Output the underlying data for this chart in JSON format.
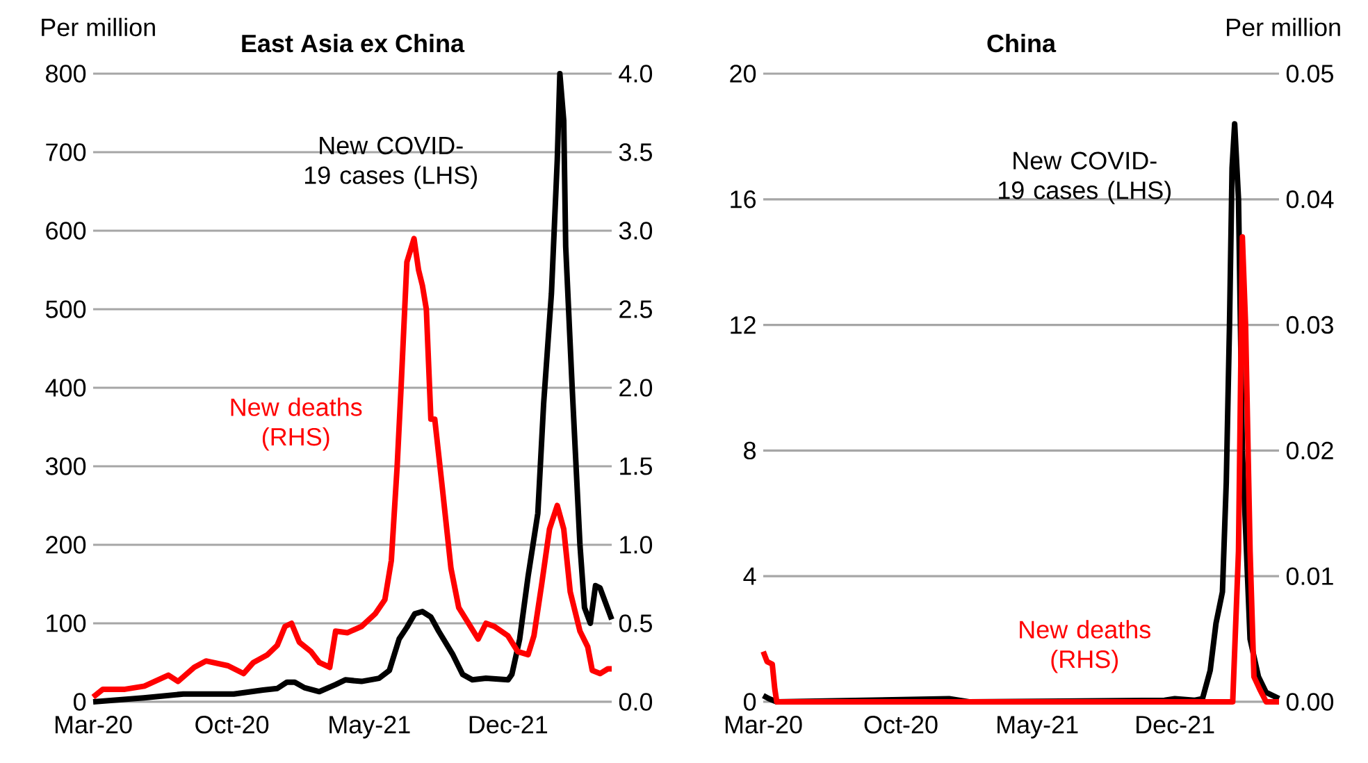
{
  "chart_data": [
    {
      "type": "line",
      "title": "East Asia ex China",
      "ylabel": "Per million",
      "annotations": [
        "New COVID-19 cases (LHS)",
        "New deaths (RHS)"
      ],
      "grid": "y",
      "line_style": "solid",
      "xlim": [
        "2020-03-01",
        "2022-05-10"
      ],
      "xticks": [
        {
          "value": "2020-03-01",
          "label": "Mar-20"
        },
        {
          "value": "2020-10-01",
          "label": "Oct-20"
        },
        {
          "value": "2021-05-01",
          "label": "May-21"
        },
        {
          "value": "2021-12-01",
          "label": "Dec-21"
        }
      ],
      "ylim": [
        0,
        800
      ],
      "yticks": [
        0,
        100,
        200,
        300,
        400,
        500,
        600,
        700,
        800
      ],
      "y2lim": [
        0,
        4
      ],
      "y2ticks": [
        {
          "value": 0,
          "label": "0.0"
        },
        {
          "value": 0.5,
          "label": "0.5"
        },
        {
          "value": 1,
          "label": "1.0"
        },
        {
          "value": 1.5,
          "label": "1.5"
        },
        {
          "value": 2,
          "label": "2.0"
        },
        {
          "value": 2.5,
          "label": "2.5"
        },
        {
          "value": 3,
          "label": "3.0"
        },
        {
          "value": 3.5,
          "label": "3.5"
        },
        {
          "value": 4,
          "label": "4.0"
        }
      ],
      "series": [
        {
          "color": "#000000",
          "x": [
            "2020-03-01",
            "2020-05-18",
            "2020-07-18",
            "2020-10-04",
            "2020-11-18",
            "2020-12-10",
            "2020-12-25",
            "2021-01-06",
            "2021-01-21",
            "2021-02-13",
            "2021-03-10",
            "2021-03-25",
            "2021-04-19",
            "2021-05-16",
            "2021-06-01",
            "2021-06-16",
            "2021-06-28",
            "2021-07-10",
            "2021-07-22",
            "2021-08-04",
            "2021-08-16",
            "2021-09-07",
            "2021-09-22",
            "2021-10-07",
            "2021-10-28",
            "2021-12-01",
            "2021-12-07",
            "2021-12-19",
            "2022-01-01",
            "2022-01-16",
            "2022-01-25",
            "2022-02-06",
            "2022-02-15",
            "2022-02-19",
            "2022-02-25",
            "2022-02-28",
            "2022-03-10",
            "2022-03-22",
            "2022-03-29",
            "2022-04-07",
            "2022-04-15",
            "2022-04-22",
            "2022-05-10"
          ],
          "values": [
            0,
            5,
            10,
            10,
            15,
            17,
            25,
            25,
            18,
            13,
            22,
            28,
            26,
            30,
            40,
            80,
            95,
            112,
            115,
            108,
            90,
            60,
            35,
            28,
            30,
            28,
            35,
            80,
            160,
            240,
            380,
            520,
            690,
            800,
            740,
            580,
            400,
            200,
            120,
            100,
            148,
            145,
            105
          ]
        },
        {
          "color": "#ff0000",
          "axis": "y2",
          "x": [
            "2020-03-01",
            "2020-03-16",
            "2020-04-19",
            "2020-05-19",
            "2020-06-25",
            "2020-07-10",
            "2020-08-04",
            "2020-08-22",
            "2020-09-25",
            "2020-10-19",
            "2020-11-03",
            "2020-11-25",
            "2020-12-10",
            "2020-12-22",
            "2021-01-01",
            "2021-01-13",
            "2021-01-31",
            "2021-02-13",
            "2021-03-01",
            "2021-03-10",
            "2021-03-28",
            "2021-04-19",
            "2021-05-10",
            "2021-05-25",
            "2021-06-04",
            "2021-06-13",
            "2021-06-19",
            "2021-06-28",
            "2021-07-09",
            "2021-07-16",
            "2021-07-22",
            "2021-07-28",
            "2021-08-04",
            "2021-08-10",
            "2021-08-22",
            "2021-09-04",
            "2021-09-16",
            "2021-10-01",
            "2021-10-16",
            "2021-10-28",
            "2021-11-10",
            "2021-12-01",
            "2021-12-16",
            "2022-01-01",
            "2022-01-10",
            "2022-01-22",
            "2022-02-03",
            "2022-02-15",
            "2022-02-25",
            "2022-03-07",
            "2022-03-22",
            "2022-04-03",
            "2022-04-10",
            "2022-04-22",
            "2022-05-04",
            "2022-05-10"
          ],
          "values": [
            0.03,
            0.08,
            0.08,
            0.1,
            0.17,
            0.13,
            0.22,
            0.26,
            0.23,
            0.18,
            0.25,
            0.3,
            0.36,
            0.48,
            0.5,
            0.38,
            0.32,
            0.25,
            0.22,
            0.45,
            0.44,
            0.48,
            0.56,
            0.65,
            0.9,
            1.5,
            2.0,
            2.8,
            2.95,
            2.75,
            2.65,
            2.5,
            1.8,
            1.8,
            1.35,
            0.85,
            0.6,
            0.5,
            0.4,
            0.5,
            0.48,
            0.42,
            0.32,
            0.3,
            0.42,
            0.75,
            1.1,
            1.25,
            1.1,
            0.7,
            0.45,
            0.35,
            0.2,
            0.18,
            0.21,
            0.21
          ]
        }
      ]
    },
    {
      "type": "line",
      "title": "China",
      "y2label": "Per million",
      "annotations": [
        "New COVID-19 cases (LHS)",
        "New deaths (RHS)"
      ],
      "grid": "y",
      "line_style": "solid",
      "xlim": [
        "2020-03-01",
        "2022-05-12"
      ],
      "xticks": [
        {
          "value": "2020-03-01",
          "label": "Mar-20"
        },
        {
          "value": "2020-10-01",
          "label": "Oct-20"
        },
        {
          "value": "2021-05-01",
          "label": "May-21"
        },
        {
          "value": "2021-12-01",
          "label": "Dec-21"
        }
      ],
      "ylim": [
        0,
        20
      ],
      "yticks": [
        0,
        4,
        8,
        12,
        16,
        20
      ],
      "y2lim": [
        0,
        0.05
      ],
      "y2ticks": [
        {
          "value": 0,
          "label": "0.00"
        },
        {
          "value": 0.01,
          "label": "0.01"
        },
        {
          "value": 0.02,
          "label": "0.02"
        },
        {
          "value": 0.03,
          "label": "0.03"
        },
        {
          "value": 0.04,
          "label": "0.04"
        },
        {
          "value": 0.05,
          "label": "0.05"
        }
      ],
      "series": [
        {
          "color": "#000000",
          "x": [
            "2020-03-01",
            "2020-03-10",
            "2020-03-22",
            "2020-12-15",
            "2021-01-15",
            "2021-11-15",
            "2021-12-01",
            "2022-01-01",
            "2022-01-13",
            "2022-01-25",
            "2022-02-03",
            "2022-02-13",
            "2022-02-19",
            "2022-02-24",
            "2022-02-28",
            "2022-03-04",
            "2022-03-10",
            "2022-03-16",
            "2022-03-28",
            "2022-04-10",
            "2022-04-22",
            "2022-05-12"
          ],
          "values": [
            0.2,
            0.1,
            0,
            0.1,
            0,
            0.05,
            0.1,
            0.05,
            0.1,
            1.0,
            2.5,
            3.5,
            7,
            12,
            17,
            18.4,
            16,
            8,
            2,
            0.8,
            0.3,
            0.1
          ]
        },
        {
          "color": "#ff0000",
          "axis": "y2",
          "x": [
            "2020-03-01",
            "2020-03-07",
            "2020-03-15",
            "2020-03-19",
            "2020-03-22",
            "2022-03-01",
            "2022-03-10",
            "2022-03-16",
            "2022-03-21",
            "2022-03-28",
            "2022-04-03",
            "2022-04-12",
            "2022-04-22",
            "2022-05-12"
          ],
          "values": [
            0.004,
            0.0032,
            0.003,
            0.001,
            0,
            0,
            0.012,
            0.037,
            0.03,
            0.012,
            0.002,
            0.001,
            0,
            0
          ]
        }
      ]
    }
  ]
}
